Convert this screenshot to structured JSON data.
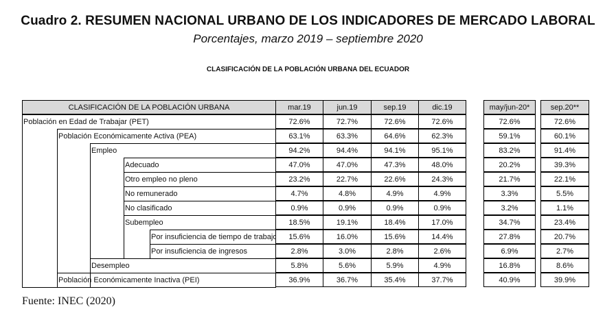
{
  "title": "Cuadro 2. RESUMEN NACIONAL URBANO DE LOS INDICADORES DE MERCADO LABORAL",
  "subtitle": "Porcentajes, marzo 2019 – septiembre 2020",
  "section_heading": "CLASIFICACIÓN DE LA POBLACIÓN URBANA DEL ECUADOR",
  "table": {
    "header_label": "CLASIFICACIÓN DE LA POBLACIÓN URBANA",
    "columns": [
      "mar.19",
      "jun.19",
      "sep.19",
      "dic.19",
      "may/jun-20*",
      "sep.20**"
    ],
    "rows": [
      {
        "label": "Población en Edad de Trabajar (PET)",
        "values": [
          "72.6%",
          "72.7%",
          "72.6%",
          "72.6%",
          "72.6%",
          "72.6%"
        ]
      },
      {
        "label": "Población Económicamente Activa (PEA)",
        "values": [
          "63.1%",
          "63.3%",
          "64.6%",
          "62.3%",
          "59.1%",
          "60.1%"
        ]
      },
      {
        "label": "Empleo",
        "values": [
          "94.2%",
          "94.4%",
          "94.1%",
          "95.1%",
          "83.2%",
          "91.4%"
        ]
      },
      {
        "label": "Adecuado",
        "values": [
          "47.0%",
          "47.0%",
          "47.3%",
          "48.0%",
          "20.2%",
          "39.3%"
        ]
      },
      {
        "label": "Otro empleo no pleno",
        "values": [
          "23.2%",
          "22.7%",
          "22.6%",
          "24.3%",
          "21.7%",
          "22.1%"
        ]
      },
      {
        "label": "No remunerado",
        "values": [
          "4.7%",
          "4.8%",
          "4.9%",
          "4.9%",
          "3.3%",
          "5.5%"
        ]
      },
      {
        "label": "No clasificado",
        "values": [
          "0.9%",
          "0.9%",
          "0.9%",
          "0.9%",
          "3.2%",
          "1.1%"
        ]
      },
      {
        "label": "Subempleo",
        "values": [
          "18.5%",
          "19.1%",
          "18.4%",
          "17.0%",
          "34.7%",
          "23.4%"
        ]
      },
      {
        "label": "Por insuficiencia de tiempo de trabajo",
        "values": [
          "15.6%",
          "16.0%",
          "15.6%",
          "14.4%",
          "27.8%",
          "20.7%"
        ]
      },
      {
        "label": "Por insuficiencia de ingresos",
        "values": [
          "2.8%",
          "3.0%",
          "2.8%",
          "2.6%",
          "6.9%",
          "2.7%"
        ]
      },
      {
        "label": "Desempleo",
        "values": [
          "5.8%",
          "5.6%",
          "5.9%",
          "4.9%",
          "16.8%",
          "8.6%"
        ]
      },
      {
        "label": "Población Económicamente Inactiva (PEI)",
        "values": [
          "36.9%",
          "36.7%",
          "35.4%",
          "37.7%",
          "40.9%",
          "39.9%"
        ]
      }
    ]
  },
  "source": "Fuente: INEC (2020)",
  "colors": {
    "header_background": "#d9d9d9",
    "border": "#000000"
  }
}
